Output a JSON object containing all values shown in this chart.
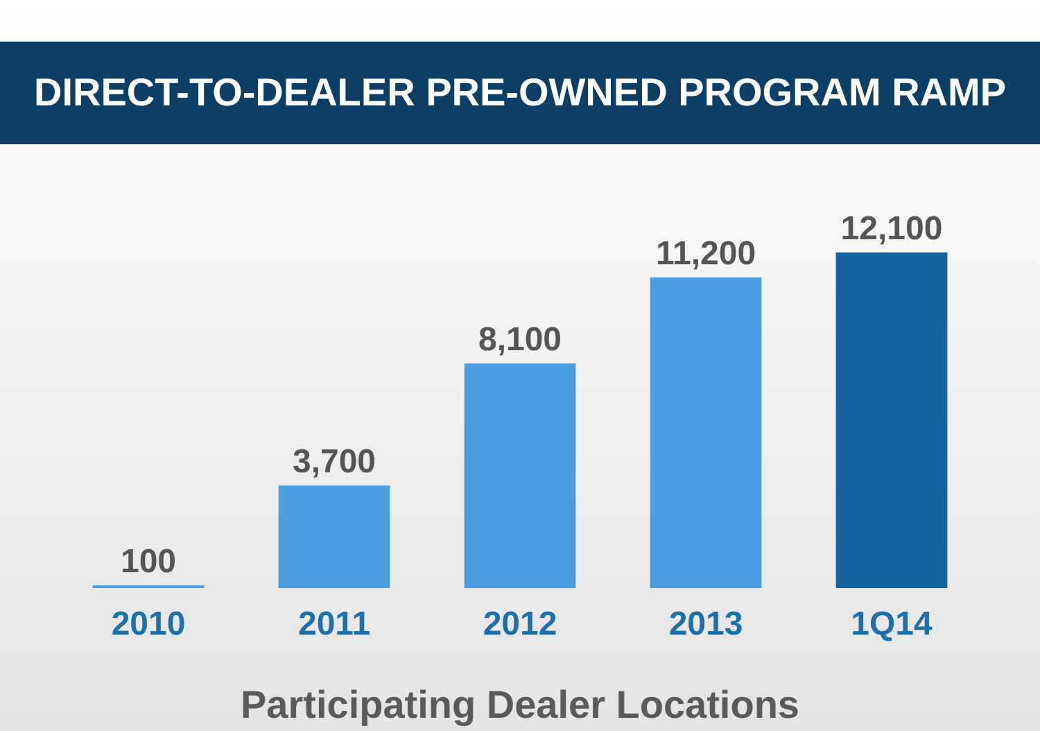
{
  "chart_data": {
    "type": "bar",
    "title": "DIRECT-TO-DEALER PRE-OWNED PROGRAM RAMP",
    "xlabel": "Participating Dealer Locations",
    "categories": [
      "2010",
      "2011",
      "2012",
      "2013",
      "1Q14"
    ],
    "values": [
      100,
      3700,
      8100,
      11200,
      12100
    ],
    "colors": [
      "#4a9fe0",
      "#4a9fe0",
      "#4a9fe0",
      "#4a9fe0",
      "#17659f"
    ],
    "value_labels": [
      "100",
      "3,700",
      "8,100",
      "11,200",
      "12,100"
    ]
  }
}
